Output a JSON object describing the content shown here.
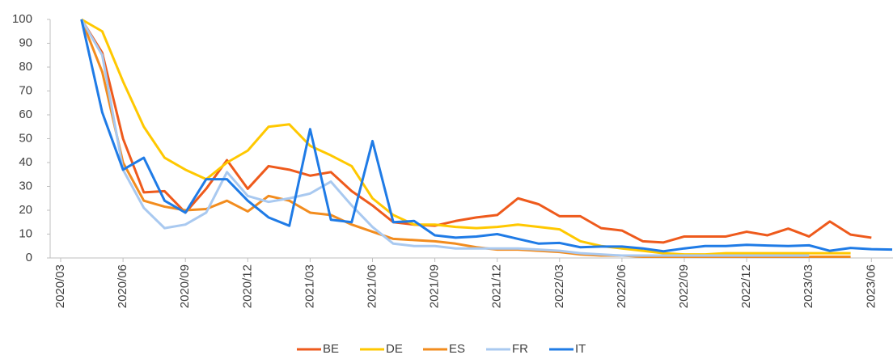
{
  "chart_data": {
    "type": "line",
    "categories": [
      "2020/03",
      null,
      null,
      "2020/06",
      null,
      null,
      "2020/09",
      null,
      null,
      "2020/12",
      null,
      null,
      "2021/03",
      null,
      null,
      "2021/06",
      null,
      null,
      "2021/09",
      null,
      null,
      "2021/12",
      null,
      null,
      "2022/03",
      null,
      null,
      "2022/06",
      null,
      null,
      "2022/09",
      null,
      null,
      "2022/12",
      null,
      null,
      "2023/03",
      null,
      null,
      "2023/06",
      null
    ],
    "series": [
      {
        "name": "BE",
        "color": "#ee5a1c",
        "values": [
          null,
          100,
          86,
          50,
          27.5,
          28,
          19,
          29,
          41,
          29,
          38.5,
          37,
          34.5,
          36,
          28,
          22,
          15,
          14,
          13.5,
          15.5,
          17,
          18,
          25,
          22.5,
          17.5,
          17.5,
          12.5,
          11.5,
          7,
          6.5,
          9,
          9,
          9,
          11,
          9.5,
          12.3,
          9,
          15.3,
          9.8,
          8.5,
          null
        ]
      },
      {
        "name": "DE",
        "color": "#ffc800",
        "values": [
          null,
          100,
          95,
          74,
          55,
          42,
          37,
          33,
          40,
          45,
          55,
          56,
          47,
          43,
          38.5,
          25,
          18,
          14,
          14,
          13,
          12.5,
          13,
          14,
          13,
          12,
          7,
          5,
          4,
          3,
          2,
          1.5,
          1.5,
          2,
          2,
          2,
          2,
          2,
          2,
          2,
          null,
          null
        ]
      },
      {
        "name": "ES",
        "color": "#f28c1e",
        "values": [
          null,
          100,
          78,
          40,
          24,
          21.5,
          20,
          20.5,
          24,
          19.5,
          26,
          24,
          19,
          18,
          14,
          11,
          8,
          7.5,
          7,
          6,
          4.5,
          3.5,
          3.5,
          3,
          2.5,
          1.5,
          1,
          1,
          0.5,
          0.5,
          0.5,
          0.5,
          0.5,
          0.5,
          0.5,
          0.5,
          0.5,
          0.5,
          0.5,
          null,
          null
        ]
      },
      {
        "name": "FR",
        "color": "#a9c9f0",
        "values": [
          null,
          100,
          85,
          37,
          21,
          12.5,
          14,
          19,
          36,
          26,
          23.5,
          25,
          27,
          32,
          22,
          13,
          6,
          5,
          5,
          4,
          4,
          4,
          4,
          3.5,
          3,
          2,
          1.5,
          1,
          1,
          1,
          1,
          1,
          1,
          1,
          1,
          1,
          1,
          null,
          null,
          null,
          null
        ]
      },
      {
        "name": "IT",
        "color": "#1f7be6",
        "values": [
          null,
          100,
          61,
          37,
          42,
          24,
          19,
          33,
          33,
          24,
          17,
          13.5,
          54,
          16,
          15,
          49,
          15,
          15.5,
          9.5,
          8.5,
          9,
          10,
          8,
          6,
          6.3,
          4.5,
          4.8,
          4.8,
          4,
          2.8,
          4,
          5,
          5,
          5.5,
          5.2,
          5,
          5.3,
          3,
          4.2,
          3.7,
          3.5
        ]
      }
    ],
    "ylim": [
      0,
      100
    ],
    "yticks": [
      0,
      10,
      20,
      30,
      40,
      50,
      60,
      70,
      80,
      90,
      100
    ],
    "legend": "bottom"
  }
}
